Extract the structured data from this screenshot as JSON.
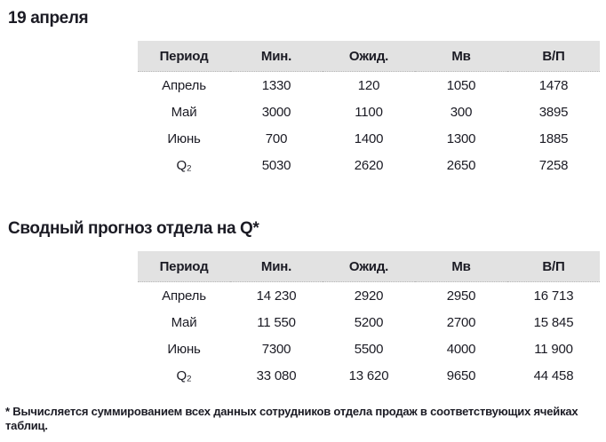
{
  "page": {
    "title": "19 апреля",
    "section_title": "Сводный прогноз отдела на Q*",
    "footnote": "* Вычисляется суммированием всех данных сотрудников отдела продаж в соответствующих ячейках таблиц."
  },
  "columns": [
    "Период",
    "Мин.",
    "Ожид.",
    "Мв",
    "В/П"
  ],
  "tables": [
    {
      "name": "daily-forecast",
      "rows": [
        [
          "Апрель",
          "1330",
          "120",
          "1050",
          "1478"
        ],
        [
          "Май",
          "3000",
          "1100",
          "300",
          "3895"
        ],
        [
          "Июнь",
          "700",
          "1400",
          "1300",
          "1885"
        ],
        [
          "Q₂",
          "5030",
          "2620",
          "2650",
          "7258"
        ]
      ]
    },
    {
      "name": "department-summary-forecast",
      "rows": [
        [
          "Апрель",
          "14 230",
          "2920",
          "2950",
          "16 713"
        ],
        [
          "Май",
          "11 550",
          "5200",
          "2700",
          "15 845"
        ],
        [
          "Июнь",
          "7300",
          "5500",
          "4000",
          "11 900"
        ],
        [
          "Q₂",
          "33 080",
          "13 620",
          "9650",
          "44 458"
        ]
      ]
    }
  ],
  "colors": {
    "header_background": "#e2e2e2",
    "text": "#1b1b24",
    "page_background": "#ffffff"
  }
}
